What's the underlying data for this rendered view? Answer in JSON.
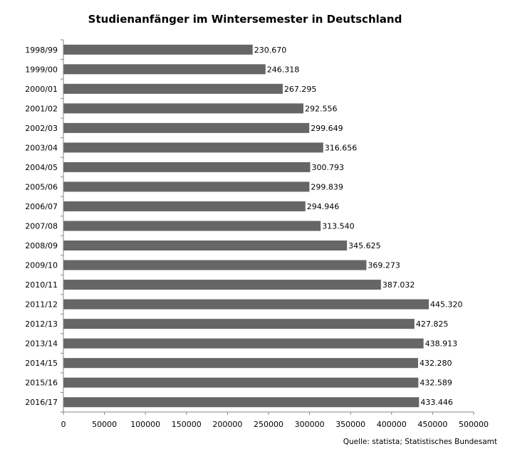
{
  "chart_data": {
    "type": "bar",
    "orientation": "horizontal",
    "title": "Studienanfänger im Wintersemester in Deutschland",
    "source": "Quelle: statista; Statistisches Bundesamt",
    "categories": [
      "1998/99",
      "1999/00",
      "2000/01",
      "2001/02",
      "2002/03",
      "2003/04",
      "2004/05",
      "2005/06",
      "2006/07",
      "2007/08",
      "2008/09",
      "2009/10",
      "2010/11",
      "2011/12",
      "2012/13",
      "2013/14",
      "2014/15",
      "2015/16",
      "2016/17"
    ],
    "values": [
      230670,
      246318,
      267295,
      292556,
      299649,
      316656,
      300793,
      299839,
      294946,
      313540,
      345625,
      369273,
      387032,
      445320,
      427825,
      438913,
      432280,
      432589,
      433446
    ],
    "value_labels": [
      "230.670",
      "246.318",
      "267.295",
      "292.556",
      "299.649",
      "316.656",
      "300.793",
      "299.839",
      "294.946",
      "313.540",
      "345.625",
      "369.273",
      "387.032",
      "445.320",
      "427.825",
      "438.913",
      "432.280",
      "432.589",
      "433.446"
    ],
    "xlim": [
      0,
      500000
    ],
    "xticks": [
      0,
      50000,
      100000,
      150000,
      200000,
      250000,
      300000,
      350000,
      400000,
      450000,
      500000
    ],
    "xtick_labels": [
      "0",
      "50000",
      "100000",
      "150000",
      "200000",
      "250000",
      "300000",
      "350000",
      "400000",
      "450000",
      "500000"
    ],
    "xlabel": "",
    "ylabel": "",
    "grid": false,
    "legend": "none",
    "bar_color": "#666666",
    "axis_color": "#868686"
  }
}
